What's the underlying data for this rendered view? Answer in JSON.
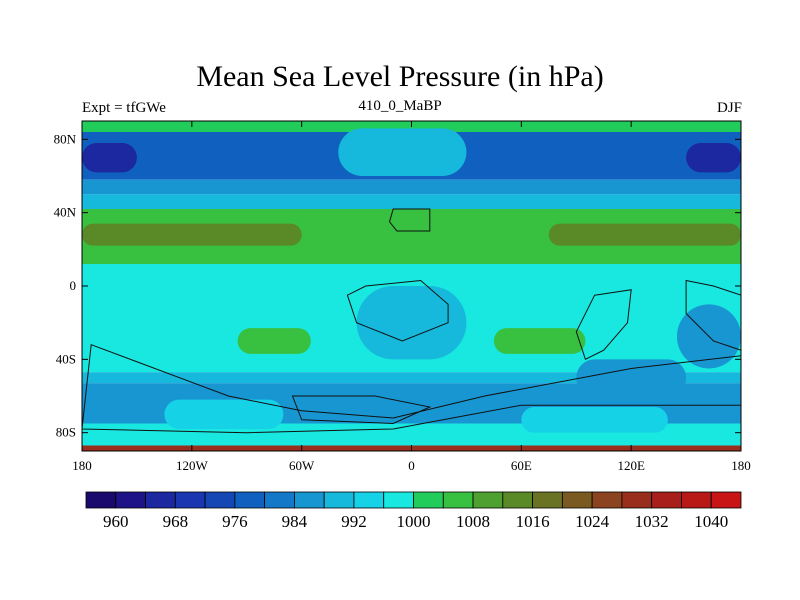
{
  "chart_data": {
    "type": "heatmap",
    "title": "Mean Sea Level Pressure (in hPa)",
    "subtitle_left": "Expt = tfGWe",
    "subtitle_center": "410_0_MaBP",
    "subtitle_right": "DJF",
    "x_range": [
      -180,
      180
    ],
    "y_range": [
      -90,
      90
    ],
    "x_ticks": [
      {
        "value": -180,
        "label": "180"
      },
      {
        "value": -120,
        "label": "120W"
      },
      {
        "value": -60,
        "label": "60W"
      },
      {
        "value": 0,
        "label": "0"
      },
      {
        "value": 60,
        "label": "60E"
      },
      {
        "value": 120,
        "label": "120E"
      },
      {
        "value": 180,
        "label": "180"
      }
    ],
    "y_ticks": [
      {
        "value": 80,
        "label": "80N"
      },
      {
        "value": 40,
        "label": "40N"
      },
      {
        "value": 0,
        "label": "0"
      },
      {
        "value": -40,
        "label": "40S"
      },
      {
        "value": -80,
        "label": "80S"
      }
    ],
    "colorbar": {
      "levels": [
        956,
        960,
        964,
        968,
        972,
        976,
        980,
        984,
        988,
        992,
        996,
        1000,
        1004,
        1008,
        1012,
        1016,
        1020,
        1024,
        1028,
        1032,
        1036,
        1040,
        1044
      ],
      "colors": [
        "#1a0a6e",
        "#1e1488",
        "#1c28a0",
        "#1a36b0",
        "#1446b4",
        "#1060c0",
        "#1478c8",
        "#1896d2",
        "#16b8dc",
        "#16d2e6",
        "#18e8e0",
        "#22cc5a",
        "#38c040",
        "#4ea030",
        "#5a8a28",
        "#6a7224",
        "#7a5a20",
        "#8c4420",
        "#9a2e1c",
        "#a81e1a",
        "#b81816",
        "#c81414"
      ],
      "labels": [
        {
          "value": 960,
          "label": "960"
        },
        {
          "value": 968,
          "label": "968"
        },
        {
          "value": 976,
          "label": "976"
        },
        {
          "value": 984,
          "label": "984"
        },
        {
          "value": 992,
          "label": "992"
        },
        {
          "value": 1000,
          "label": "1000"
        },
        {
          "value": 1008,
          "label": "1008"
        },
        {
          "value": 1016,
          "label": "1016"
        },
        {
          "value": 1024,
          "label": "1024"
        },
        {
          "value": 1032,
          "label": "1032"
        },
        {
          "value": 1040,
          "label": "1040"
        }
      ]
    },
    "zonal_bands": [
      {
        "lat_top": 90,
        "lat_bottom": 84,
        "value": 1002
      },
      {
        "lat_top": 84,
        "lat_bottom": 58,
        "value": 979
      },
      {
        "lat_top": 58,
        "lat_bottom": 50,
        "value": 986
      },
      {
        "lat_top": 50,
        "lat_bottom": 42,
        "value": 990
      },
      {
        "lat_top": 42,
        "lat_bottom": 12,
        "value": 1005
      },
      {
        "lat_top": 12,
        "lat_bottom": -47,
        "value": 998
      },
      {
        "lat_top": -47,
        "lat_bottom": -53,
        "value": 990
      },
      {
        "lat_top": -53,
        "lat_bottom": -75,
        "value": 986
      },
      {
        "lat_top": -75,
        "lat_bottom": -87,
        "value": 997
      },
      {
        "lat_top": -87,
        "lat_bottom": -90,
        "value": 1030
      }
    ],
    "cells": [
      {
        "lon_min": -180,
        "lon_max": -150,
        "lat_min": 62,
        "lat_max": 78,
        "value": 966
      },
      {
        "lon_min": 150,
        "lon_max": 180,
        "lat_min": 62,
        "lat_max": 78,
        "value": 966
      },
      {
        "lon_min": -40,
        "lon_max": 30,
        "lat_min": 60,
        "lat_max": 86,
        "value": 988
      },
      {
        "lon_min": -180,
        "lon_max": -60,
        "lat_min": 22,
        "lat_max": 34,
        "value": 1013
      },
      {
        "lon_min": 75,
        "lon_max": 180,
        "lat_min": 22,
        "lat_max": 34,
        "value": 1013
      },
      {
        "lon_min": -95,
        "lon_max": -55,
        "lat_min": -37,
        "lat_max": -23,
        "value": 1006
      },
      {
        "lon_min": 45,
        "lon_max": 95,
        "lat_min": -37,
        "lat_max": -23,
        "value": 1006
      },
      {
        "lon_min": -30,
        "lon_max": 30,
        "lat_min": -40,
        "lat_max": 0,
        "value": 990
      },
      {
        "lon_min": 145,
        "lon_max": 180,
        "lat_min": -45,
        "lat_max": -10,
        "value": 986
      },
      {
        "lon_min": 90,
        "lon_max": 150,
        "lat_min": -60,
        "lat_max": -40,
        "value": 986
      },
      {
        "lon_min": -135,
        "lon_max": -70,
        "lat_min": -78,
        "lat_max": -62,
        "value": 994
      },
      {
        "lon_min": 60,
        "lon_max": 140,
        "lat_min": -80,
        "lat_max": -66,
        "value": 994
      }
    ],
    "landmasses": [
      {
        "name": "north-landmass",
        "points": [
          [
            -10,
            42
          ],
          [
            10,
            42
          ],
          [
            10,
            30
          ],
          [
            -8,
            30
          ],
          [
            -12,
            35
          ]
        ]
      },
      {
        "name": "southwest-landmass",
        "points": [
          [
            -25,
            0
          ],
          [
            5,
            3
          ],
          [
            20,
            -10
          ],
          [
            20,
            -20
          ],
          [
            -5,
            -30
          ],
          [
            -30,
            -20
          ],
          [
            -35,
            -5
          ]
        ]
      },
      {
        "name": "east-landmass",
        "points": [
          [
            100,
            -5
          ],
          [
            120,
            -2
          ],
          [
            118,
            -20
          ],
          [
            105,
            -35
          ],
          [
            95,
            -40
          ],
          [
            90,
            -25
          ]
        ]
      },
      {
        "name": "far-east-landmass",
        "points": [
          [
            150,
            3
          ],
          [
            165,
            0
          ],
          [
            180,
            -5
          ],
          [
            180,
            -35
          ],
          [
            165,
            -30
          ],
          [
            150,
            -15
          ]
        ]
      },
      {
        "name": "south-landmass",
        "points": [
          [
            -175,
            -32
          ],
          [
            -100,
            -60
          ],
          [
            -60,
            -68
          ],
          [
            -10,
            -72
          ],
          [
            40,
            -60
          ],
          [
            120,
            -45
          ],
          [
            180,
            -38
          ],
          [
            180,
            -65
          ],
          [
            60,
            -65
          ],
          [
            -10,
            -78
          ],
          [
            -90,
            -80
          ],
          [
            -180,
            -78
          ]
        ]
      },
      {
        "name": "south-central-landmass",
        "points": [
          [
            -65,
            -60
          ],
          [
            -20,
            -60
          ],
          [
            10,
            -66
          ],
          [
            -10,
            -75
          ],
          [
            -60,
            -73
          ]
        ]
      }
    ]
  }
}
